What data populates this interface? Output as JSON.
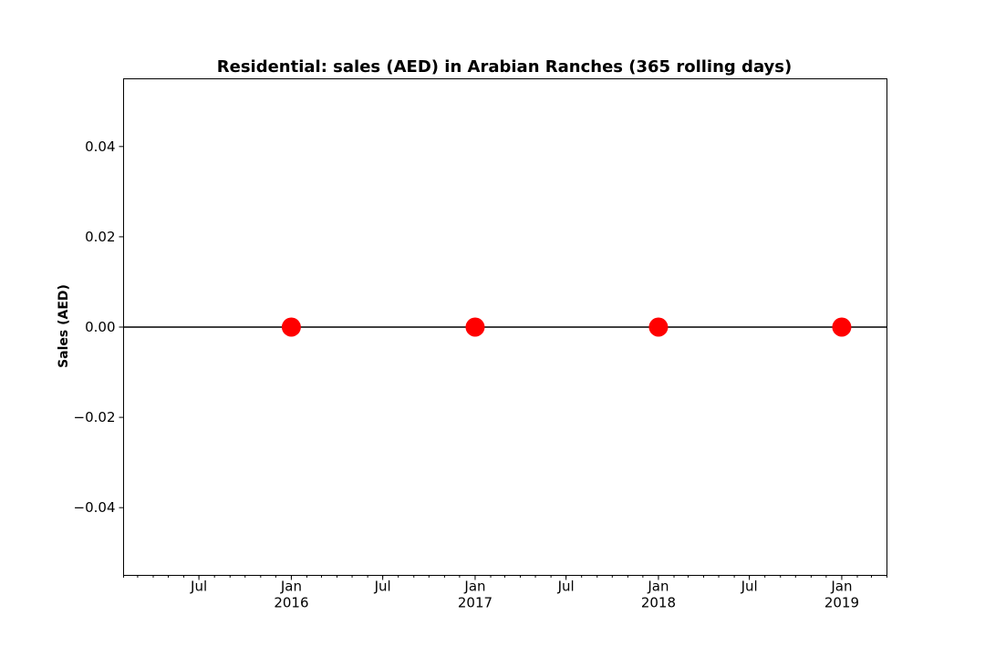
{
  "chart_data": {
    "type": "line",
    "title": "Residential: sales (AED) in Arabian Ranches (365 rolling days)",
    "xlabel": "",
    "ylabel": "Sales (AED)",
    "ylim": [
      -0.055,
      0.055
    ],
    "xlim": [
      "2015-02-01",
      "2019-04-01"
    ],
    "yticks": [
      0.04,
      0.02,
      0.0,
      -0.02,
      -0.04
    ],
    "ytick_labels": [
      "0.04",
      "0.02",
      "0.00",
      "−0.02",
      "−0.04"
    ],
    "xticks_major": [
      {
        "date": "2015-07-01",
        "label": "Jul",
        "sublabel": ""
      },
      {
        "date": "2016-01-01",
        "label": "Jan",
        "sublabel": "2016"
      },
      {
        "date": "2016-07-01",
        "label": "Jul",
        "sublabel": ""
      },
      {
        "date": "2017-01-01",
        "label": "Jan",
        "sublabel": "2017"
      },
      {
        "date": "2017-07-01",
        "label": "Jul",
        "sublabel": ""
      },
      {
        "date": "2018-01-01",
        "label": "Jan",
        "sublabel": "2018"
      },
      {
        "date": "2018-07-01",
        "label": "Jul",
        "sublabel": ""
      },
      {
        "date": "2019-01-01",
        "label": "Jan",
        "sublabel": "2019"
      }
    ],
    "grid": false,
    "series": [
      {
        "color": "#000000",
        "marker": "none",
        "x": [
          "2015-02-01",
          "2019-04-01"
        ],
        "y": [
          0,
          0
        ]
      },
      {
        "color": "#ff0000",
        "marker": "circle",
        "x": [
          "2016-01-01",
          "2017-01-01",
          "2018-01-01",
          "2019-01-01"
        ],
        "y": [
          0,
          0,
          0,
          0
        ]
      }
    ]
  }
}
